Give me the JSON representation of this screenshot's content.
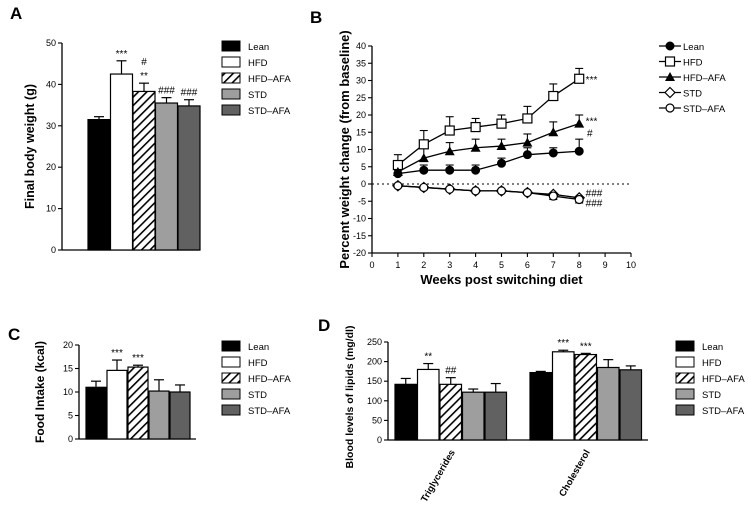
{
  "panels": {
    "A": "A",
    "B": "B",
    "C": "C",
    "D": "D"
  },
  "colors": {
    "Lean": "#000000",
    "HFD": "#ffffff",
    "HFD-AFA": "hatch",
    "STD": "#9e9e9e",
    "STD-AFA": "#616161"
  },
  "chart_data": [
    {
      "type": "bar",
      "panel": "A",
      "categories": [
        "Lean",
        "HFD",
        "HFD-AFA",
        "STD",
        "STD-AFA"
      ],
      "values": [
        31.5,
        42.5,
        38.3,
        35.5,
        34.8
      ],
      "errors": [
        0.7,
        3.2,
        2.0,
        1.3,
        1.5
      ],
      "annotations": [
        "",
        "***",
        "#\n**",
        "###",
        "###"
      ],
      "ylabel": "Final body weight (g)",
      "ylim": [
        0,
        50
      ],
      "yticks": [
        0,
        10,
        20,
        30,
        40,
        50
      ],
      "legend": [
        "Lean",
        "HFD",
        "HFD–AFA",
        "STD",
        "STD–AFA"
      ]
    },
    {
      "type": "line",
      "panel": "B",
      "x": [
        1,
        2,
        3,
        4,
        5,
        6,
        7,
        8
      ],
      "series": [
        {
          "name": "Lean",
          "marker": "filled-circle",
          "values": [
            3,
            4,
            4,
            4,
            6,
            8.5,
            9,
            9.5
          ],
          "errors": [
            1,
            1.5,
            1.5,
            1.5,
            1.5,
            2,
            1.5,
            3.5
          ]
        },
        {
          "name": "HFD",
          "marker": "open-square",
          "values": [
            5.5,
            11.5,
            15.5,
            16.5,
            17.5,
            19,
            25.5,
            30.5
          ],
          "errors": [
            3,
            4,
            4,
            2.5,
            2.5,
            3.5,
            3.5,
            3
          ]
        },
        {
          "name": "HFD–AFA",
          "marker": "filled-triangle",
          "values": [
            3.5,
            7.5,
            9.5,
            10.5,
            11,
            12,
            15,
            17.5
          ],
          "errors": [
            1.5,
            3,
            2.5,
            2.5,
            2,
            2.5,
            3,
            2.5
          ]
        },
        {
          "name": "STD",
          "marker": "open-diamond",
          "values": [
            -0.5,
            -1,
            -1.5,
            -2,
            -2,
            -2.5,
            -3,
            -4
          ],
          "errors": [
            0.5,
            0.5,
            0.5,
            0.5,
            0.5,
            0.5,
            1,
            1
          ]
        },
        {
          "name": "STD–AFA",
          "marker": "open-circle",
          "values": [
            -0.5,
            -1,
            -1.5,
            -2,
            -2,
            -2.5,
            -3.5,
            -4.5
          ],
          "errors": [
            0.5,
            0.5,
            0.5,
            0.5,
            0.5,
            0.5,
            1,
            1
          ]
        }
      ],
      "annotations": [
        "***",
        "***",
        "#",
        "###",
        "###"
      ],
      "xlabel": "Weeks post switching diet",
      "ylabel": "Percent weight change (from baseline)",
      "xlim": [
        0,
        10
      ],
      "ylim": [
        -20,
        40
      ],
      "xticks": [
        0,
        1,
        2,
        3,
        4,
        5,
        6,
        7,
        8,
        9,
        10
      ],
      "yticks": [
        -20,
        -15,
        -10,
        -5,
        0,
        5,
        10,
        15,
        20,
        25,
        30,
        35,
        40
      ],
      "legend": [
        "Lean",
        "HFD",
        "HFD–AFA",
        "STD",
        "STD–AFA"
      ]
    },
    {
      "type": "bar",
      "panel": "C",
      "categories": [
        "Lean",
        "HFD",
        "HFD-AFA",
        "STD",
        "STD-AFA"
      ],
      "values": [
        11,
        14.6,
        15.3,
        10.2,
        10
      ],
      "errors": [
        1.3,
        2.2,
        0.4,
        2.4,
        1.5
      ],
      "annotations": [
        "",
        "***",
        "***",
        "",
        ""
      ],
      "ylabel": "Food Intake (kcal)",
      "ylim": [
        0,
        20
      ],
      "yticks": [
        0,
        5,
        10,
        15,
        20
      ],
      "legend": [
        "Lean",
        "HFD",
        "HFD–AFA",
        "STD",
        "STD–AFA"
      ]
    },
    {
      "type": "bar",
      "panel": "D",
      "categories": [
        "Triglycerides",
        "Cholesterol"
      ],
      "series": [
        {
          "name": "Lean",
          "values": [
            142,
            172
          ],
          "errors": [
            15,
            3
          ]
        },
        {
          "name": "HFD",
          "values": [
            180,
            225
          ],
          "errors": [
            15,
            4
          ]
        },
        {
          "name": "HFD–AFA",
          "values": [
            142,
            218
          ],
          "errors": [
            17,
            3
          ]
        },
        {
          "name": "STD",
          "values": [
            122,
            185
          ],
          "errors": [
            8,
            20
          ]
        },
        {
          "name": "STD–AFA",
          "values": [
            122,
            179
          ],
          "errors": [
            22,
            10
          ]
        }
      ],
      "annotations": {
        "Triglycerides": [
          "",
          "**",
          "##",
          "",
          ""
        ],
        "Cholesterol": [
          "",
          "***",
          "***",
          "",
          ""
        ]
      },
      "ylabel": "Blood levels of lipids (mg/dl)",
      "ylim": [
        0,
        250
      ],
      "yticks": [
        0,
        50,
        100,
        150,
        200,
        250
      ],
      "legend": [
        "Lean",
        "HFD",
        "HFD–AFA",
        "STD",
        "STD–AFA"
      ]
    }
  ]
}
